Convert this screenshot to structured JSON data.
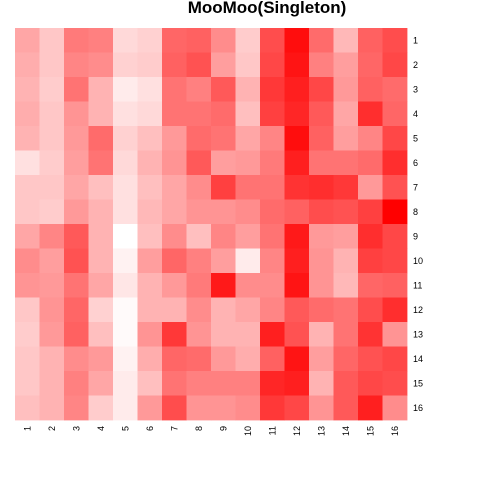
{
  "chart_data": {
    "type": "heatmap",
    "title": "MooMoo(Singleton)",
    "xlabel": "",
    "ylabel": "",
    "x_categories": [
      "1",
      "2",
      "3",
      "4",
      "5",
      "6",
      "7",
      "8",
      "9",
      "10",
      "11",
      "12",
      "13",
      "14",
      "15",
      "16"
    ],
    "y_categories": [
      "1",
      "2",
      "3",
      "4",
      "5",
      "6",
      "7",
      "8",
      "9",
      "10",
      "11",
      "12",
      "13",
      "14",
      "15",
      "16"
    ],
    "value_range": [
      0,
      1
    ],
    "color_low": "#ffffff",
    "color_high": "#ff0000",
    "legend": "none",
    "values": [
      [
        0.35,
        0.22,
        0.52,
        0.5,
        0.15,
        0.18,
        0.6,
        0.62,
        0.45,
        0.2,
        0.7,
        0.95,
        0.58,
        0.28,
        0.62,
        0.7
      ],
      [
        0.32,
        0.22,
        0.48,
        0.45,
        0.18,
        0.2,
        0.62,
        0.68,
        0.38,
        0.22,
        0.72,
        0.92,
        0.5,
        0.38,
        0.6,
        0.72
      ],
      [
        0.3,
        0.2,
        0.55,
        0.3,
        0.08,
        0.12,
        0.55,
        0.5,
        0.65,
        0.3,
        0.78,
        0.88,
        0.72,
        0.4,
        0.62,
        0.58
      ],
      [
        0.32,
        0.22,
        0.42,
        0.3,
        0.12,
        0.15,
        0.55,
        0.55,
        0.58,
        0.25,
        0.75,
        0.85,
        0.65,
        0.35,
        0.82,
        0.6
      ],
      [
        0.3,
        0.22,
        0.4,
        0.58,
        0.18,
        0.25,
        0.4,
        0.58,
        0.55,
        0.35,
        0.48,
        0.95,
        0.62,
        0.38,
        0.48,
        0.72
      ],
      [
        0.12,
        0.2,
        0.38,
        0.55,
        0.15,
        0.3,
        0.42,
        0.65,
        0.38,
        0.4,
        0.52,
        0.88,
        0.55,
        0.55,
        0.58,
        0.82
      ],
      [
        0.22,
        0.22,
        0.35,
        0.25,
        0.12,
        0.25,
        0.35,
        0.45,
        0.75,
        0.55,
        0.55,
        0.8,
        0.82,
        0.78,
        0.4,
        0.68
      ],
      [
        0.22,
        0.2,
        0.4,
        0.3,
        0.12,
        0.28,
        0.35,
        0.42,
        0.42,
        0.45,
        0.58,
        0.62,
        0.7,
        0.68,
        0.75,
        1.0
      ],
      [
        0.35,
        0.48,
        0.65,
        0.3,
        0.0,
        0.25,
        0.45,
        0.25,
        0.48,
        0.38,
        0.55,
        0.9,
        0.4,
        0.38,
        0.82,
        0.72
      ],
      [
        0.45,
        0.38,
        0.68,
        0.3,
        0.05,
        0.38,
        0.6,
        0.5,
        0.38,
        0.08,
        0.48,
        0.88,
        0.42,
        0.3,
        0.75,
        0.72
      ],
      [
        0.42,
        0.4,
        0.55,
        0.35,
        0.1,
        0.3,
        0.4,
        0.52,
        0.9,
        0.45,
        0.45,
        0.92,
        0.42,
        0.28,
        0.6,
        0.62
      ],
      [
        0.22,
        0.42,
        0.6,
        0.18,
        0.02,
        0.3,
        0.3,
        0.45,
        0.3,
        0.35,
        0.48,
        0.65,
        0.58,
        0.55,
        0.7,
        0.82
      ],
      [
        0.2,
        0.4,
        0.62,
        0.25,
        0.02,
        0.42,
        0.78,
        0.42,
        0.3,
        0.3,
        0.88,
        0.68,
        0.3,
        0.55,
        0.8,
        0.42
      ],
      [
        0.22,
        0.3,
        0.45,
        0.4,
        0.05,
        0.32,
        0.6,
        0.58,
        0.4,
        0.32,
        0.62,
        0.92,
        0.38,
        0.6,
        0.68,
        0.72
      ],
      [
        0.22,
        0.3,
        0.5,
        0.35,
        0.08,
        0.25,
        0.55,
        0.5,
        0.5,
        0.5,
        0.85,
        0.88,
        0.3,
        0.65,
        0.72,
        0.7
      ],
      [
        0.25,
        0.3,
        0.48,
        0.2,
        0.08,
        0.4,
        0.7,
        0.42,
        0.42,
        0.45,
        0.78,
        0.72,
        0.42,
        0.65,
        0.88,
        0.45
      ]
    ]
  }
}
